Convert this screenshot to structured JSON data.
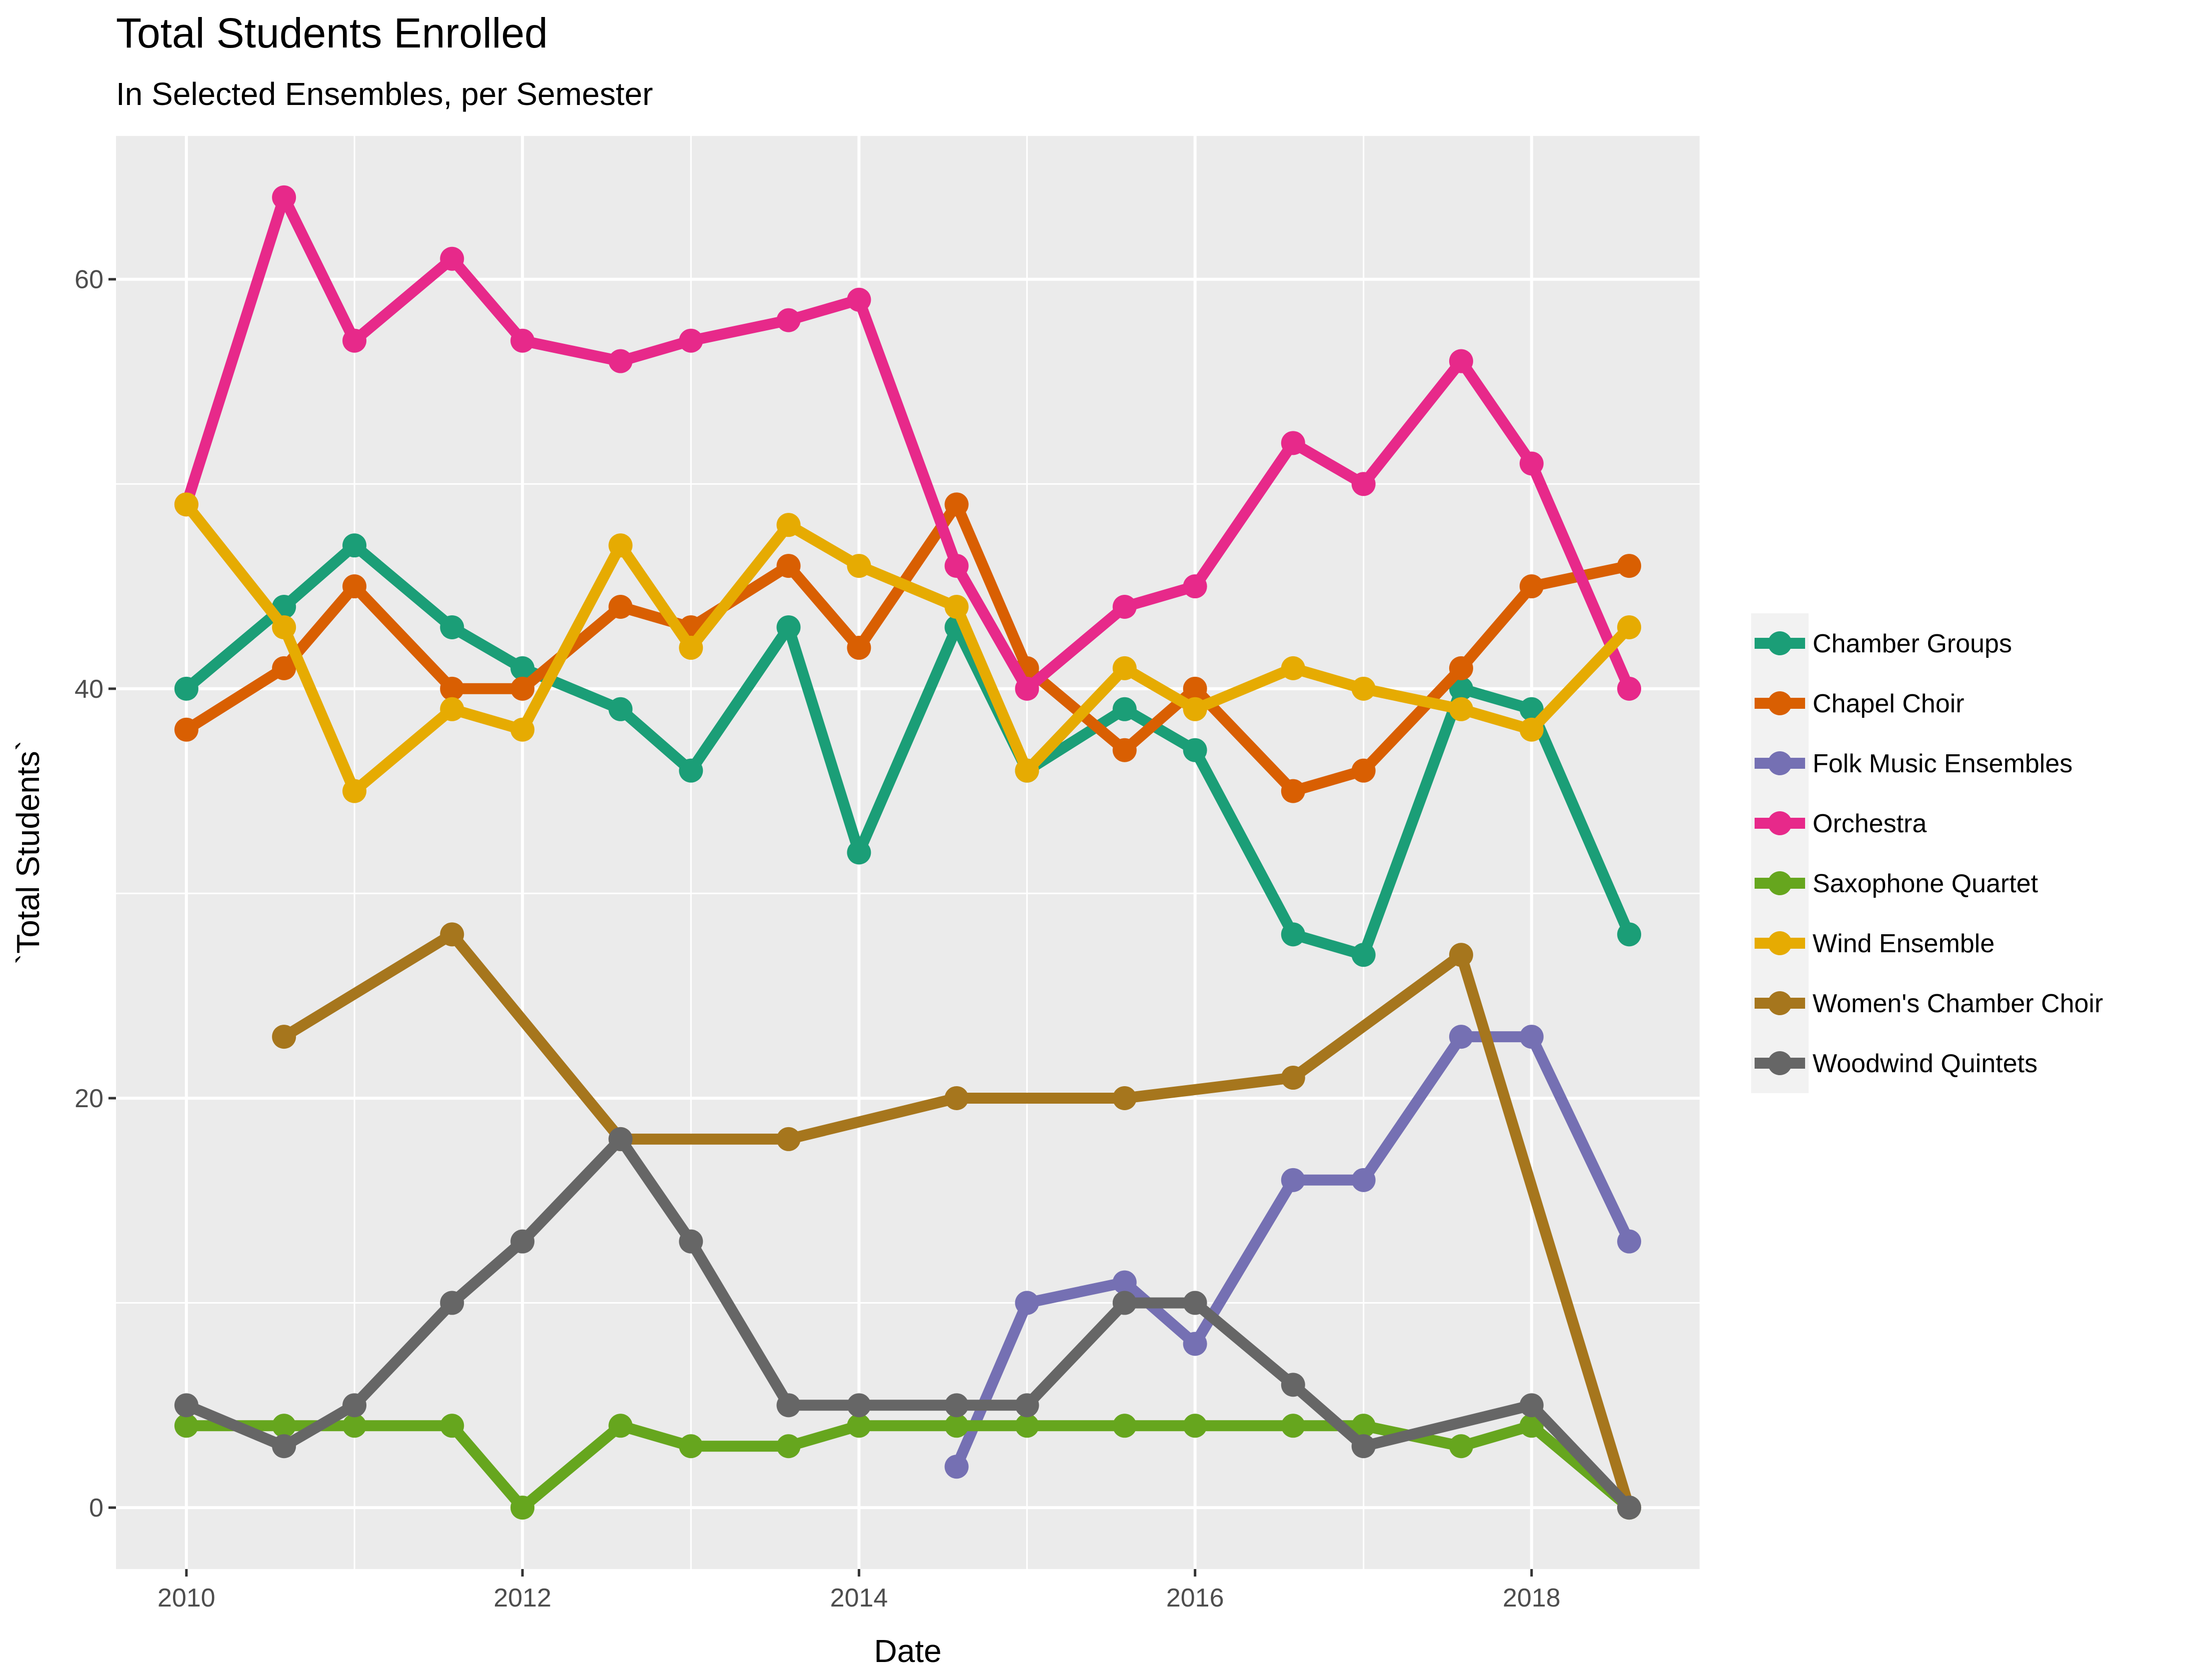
{
  "chart_data": {
    "type": "line",
    "title": "Total Students Enrolled",
    "subtitle": "In Selected Ensembles, per Semester",
    "xlabel": "Date",
    "ylabel": "`Total Students`",
    "xlim": [
      "2009-08-01",
      "2019-01-01"
    ],
    "ylim": [
      -3,
      67
    ],
    "x_ticks": [
      "2010",
      "2012",
      "2014",
      "2016",
      "2018"
    ],
    "y_ticks": [
      "0",
      "20",
      "40",
      "60"
    ],
    "grid": true,
    "legend_position": "right",
    "series": [
      {
        "name": "Chamber Groups",
        "color": "#1b9e77",
        "points": [
          [
            "2010-01-01",
            40
          ],
          [
            "2010-08-01",
            44
          ],
          [
            "2011-01-01",
            47
          ],
          [
            "2011-08-01",
            43
          ],
          [
            "2012-01-01",
            41
          ],
          [
            "2012-08-01",
            39
          ],
          [
            "2013-01-01",
            36
          ],
          [
            "2013-08-01",
            43
          ],
          [
            "2014-01-01",
            32
          ],
          [
            "2014-08-01",
            43
          ],
          [
            "2015-01-01",
            36
          ],
          [
            "2015-08-01",
            39
          ],
          [
            "2016-01-01",
            37
          ],
          [
            "2016-08-01",
            28
          ],
          [
            "2017-01-01",
            27
          ],
          [
            "2017-08-01",
            40
          ],
          [
            "2018-01-01",
            39
          ],
          [
            "2018-08-01",
            28
          ]
        ]
      },
      {
        "name": "Chapel Choir",
        "color": "#d95f02",
        "points": [
          [
            "2010-01-01",
            38
          ],
          [
            "2010-08-01",
            41
          ],
          [
            "2011-01-01",
            45
          ],
          [
            "2011-08-01",
            40
          ],
          [
            "2012-01-01",
            40
          ],
          [
            "2012-08-01",
            44
          ],
          [
            "2013-01-01",
            43
          ],
          [
            "2013-08-01",
            46
          ],
          [
            "2014-01-01",
            42
          ],
          [
            "2014-08-01",
            49
          ],
          [
            "2015-01-01",
            41
          ],
          [
            "2015-08-01",
            37
          ],
          [
            "2016-01-01",
            40
          ],
          [
            "2016-08-01",
            35
          ],
          [
            "2017-01-01",
            36
          ],
          [
            "2017-08-01",
            41
          ],
          [
            "2018-01-01",
            45
          ],
          [
            "2018-08-01",
            46
          ]
        ]
      },
      {
        "name": "Folk Music Ensembles",
        "color": "#7570b3",
        "points": [
          [
            "2014-08-01",
            2
          ],
          [
            "2015-01-01",
            10
          ],
          [
            "2015-08-01",
            11
          ],
          [
            "2016-01-01",
            8
          ],
          [
            "2016-08-01",
            16
          ],
          [
            "2017-01-01",
            16
          ],
          [
            "2017-08-01",
            23
          ],
          [
            "2018-01-01",
            23
          ],
          [
            "2018-08-01",
            13
          ]
        ]
      },
      {
        "name": "Orchestra",
        "color": "#e7298a",
        "points": [
          [
            "2010-01-01",
            49
          ],
          [
            "2010-08-01",
            64
          ],
          [
            "2011-01-01",
            57
          ],
          [
            "2011-08-01",
            61
          ],
          [
            "2012-01-01",
            57
          ],
          [
            "2012-08-01",
            56
          ],
          [
            "2013-01-01",
            57
          ],
          [
            "2013-08-01",
            58
          ],
          [
            "2014-01-01",
            59
          ],
          [
            "2014-08-01",
            46
          ],
          [
            "2015-01-01",
            40
          ],
          [
            "2015-08-01",
            44
          ],
          [
            "2016-01-01",
            45
          ],
          [
            "2016-08-01",
            52
          ],
          [
            "2017-01-01",
            50
          ],
          [
            "2017-08-01",
            56
          ],
          [
            "2018-01-01",
            51
          ],
          [
            "2018-08-01",
            40
          ]
        ]
      },
      {
        "name": "Saxophone Quartet",
        "color": "#66a61e",
        "points": [
          [
            "2010-01-01",
            4
          ],
          [
            "2010-08-01",
            4
          ],
          [
            "2011-01-01",
            4
          ],
          [
            "2011-08-01",
            4
          ],
          [
            "2012-01-01",
            0
          ],
          [
            "2012-08-01",
            4
          ],
          [
            "2013-01-01",
            3
          ],
          [
            "2013-08-01",
            3
          ],
          [
            "2014-01-01",
            4
          ],
          [
            "2014-08-01",
            4
          ],
          [
            "2015-01-01",
            4
          ],
          [
            "2015-08-01",
            4
          ],
          [
            "2016-01-01",
            4
          ],
          [
            "2016-08-01",
            4
          ],
          [
            "2017-01-01",
            4
          ],
          [
            "2017-08-01",
            3
          ],
          [
            "2018-01-01",
            4
          ],
          [
            "2018-08-01",
            0
          ]
        ]
      },
      {
        "name": "Wind Ensemble",
        "color": "#e6ab02",
        "points": [
          [
            "2010-01-01",
            49
          ],
          [
            "2010-08-01",
            43
          ],
          [
            "2011-01-01",
            35
          ],
          [
            "2011-08-01",
            39
          ],
          [
            "2012-01-01",
            38
          ],
          [
            "2012-08-01",
            47
          ],
          [
            "2013-01-01",
            42
          ],
          [
            "2013-08-01",
            48
          ],
          [
            "2014-01-01",
            46
          ],
          [
            "2014-08-01",
            44
          ],
          [
            "2015-01-01",
            36
          ],
          [
            "2015-08-01",
            41
          ],
          [
            "2016-01-01",
            39
          ],
          [
            "2016-08-01",
            41
          ],
          [
            "2017-01-01",
            40
          ],
          [
            "2017-08-01",
            39
          ],
          [
            "2018-01-01",
            38
          ],
          [
            "2018-08-01",
            43
          ]
        ]
      },
      {
        "name": "Women's Chamber Choir",
        "color": "#a6761d",
        "points": [
          [
            "2010-08-01",
            23
          ],
          [
            "2011-08-01",
            28
          ],
          [
            "2012-08-01",
            18
          ],
          [
            "2013-08-01",
            18
          ],
          [
            "2014-08-01",
            20
          ],
          [
            "2015-08-01",
            20
          ],
          [
            "2016-08-01",
            21
          ],
          [
            "2017-08-01",
            27
          ],
          [
            "2018-08-01",
            0
          ]
        ]
      },
      {
        "name": "Woodwind Quintets",
        "color": "#666666",
        "points": [
          [
            "2010-01-01",
            5
          ],
          [
            "2010-08-01",
            3
          ],
          [
            "2011-01-01",
            5
          ],
          [
            "2011-08-01",
            10
          ],
          [
            "2012-01-01",
            13
          ],
          [
            "2012-08-01",
            18
          ],
          [
            "2013-01-01",
            13
          ],
          [
            "2013-08-01",
            5
          ],
          [
            "2014-01-01",
            5
          ],
          [
            "2014-08-01",
            5
          ],
          [
            "2015-01-01",
            5
          ],
          [
            "2015-08-01",
            10
          ],
          [
            "2016-01-01",
            10
          ],
          [
            "2016-08-01",
            6
          ],
          [
            "2017-01-01",
            3
          ],
          [
            "2018-01-01",
            5
          ],
          [
            "2018-08-01",
            0
          ]
        ]
      }
    ]
  }
}
